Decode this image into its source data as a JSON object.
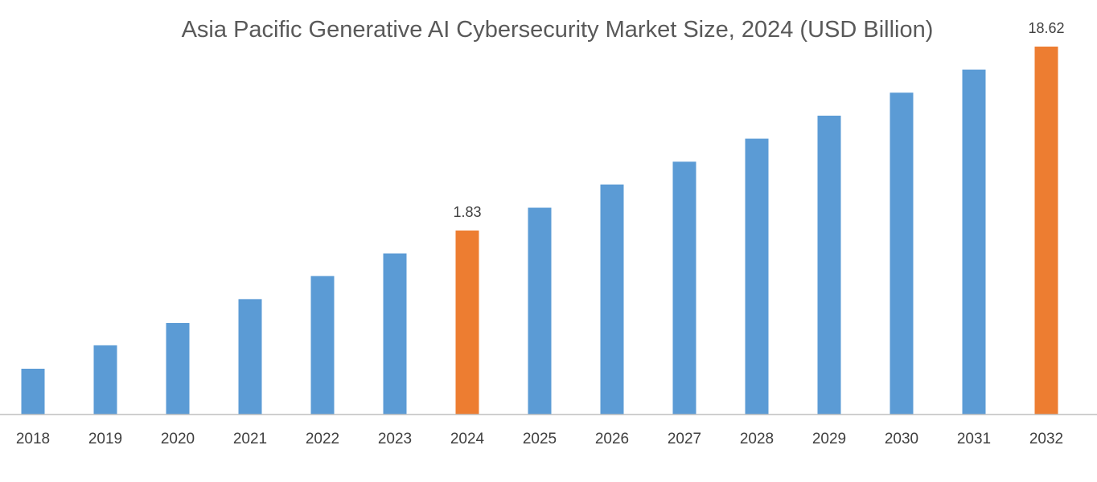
{
  "chart_data": {
    "type": "bar",
    "title": "Asia Pacific Generative AI Cybersecurity Market Size, 2024 (USD Billion)",
    "xlabel": "",
    "ylabel": "",
    "y_scale": "log",
    "grid": false,
    "legend": "none",
    "categories": [
      "2018",
      "2019",
      "2020",
      "2021",
      "2022",
      "2023",
      "2024",
      "2025",
      "2026",
      "2027",
      "2028",
      "2029",
      "2030",
      "2031",
      "2032"
    ],
    "values": [
      0.32,
      0.43,
      0.57,
      0.77,
      1.03,
      1.37,
      1.83,
      2.44,
      3.27,
      4.36,
      5.83,
      7.79,
      10.41,
      13.93,
      18.62
    ],
    "highlighted": [
      "2024",
      "2032"
    ],
    "data_labels": {
      "2024": "1.83",
      "2032": "18.62"
    },
    "colors": {
      "bar": "#5B9BD5",
      "highlight": "#ED7D31",
      "axis": "#BFBFBF"
    }
  }
}
